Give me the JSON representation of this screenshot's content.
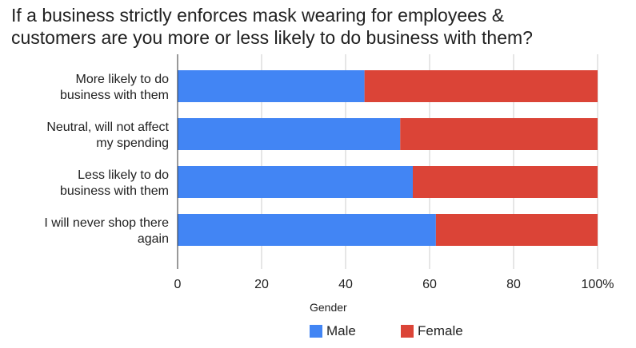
{
  "title_lines": [
    "If a business strictly enforces mask wearing for employees &",
    "customers are you more or less likely to do business with them?"
  ],
  "chart_data": {
    "type": "bar",
    "orientation": "horizontal",
    "stacked": "percent",
    "title": "If a business strictly enforces mask wearing for employees & customers are you more or less likely to do business with them?",
    "categories": [
      [
        "More likely to do",
        "business with them"
      ],
      [
        "Neutral, will not affect",
        "my spending"
      ],
      [
        "Less likely to do",
        "business with them"
      ],
      [
        "I will never shop there",
        "again"
      ]
    ],
    "series": [
      {
        "name": "Male",
        "color": "#4285f4",
        "values": [
          44.5,
          53,
          56,
          61.5
        ]
      },
      {
        "name": "Female",
        "color": "#db4437",
        "values": [
          55.5,
          47,
          44,
          38.5
        ]
      }
    ],
    "xlim": [
      0,
      100
    ],
    "ticks": [
      "0",
      "20",
      "40",
      "60",
      "80",
      "100%"
    ],
    "grid": true,
    "legend_title": "Gender",
    "legend_position": "bottom"
  }
}
